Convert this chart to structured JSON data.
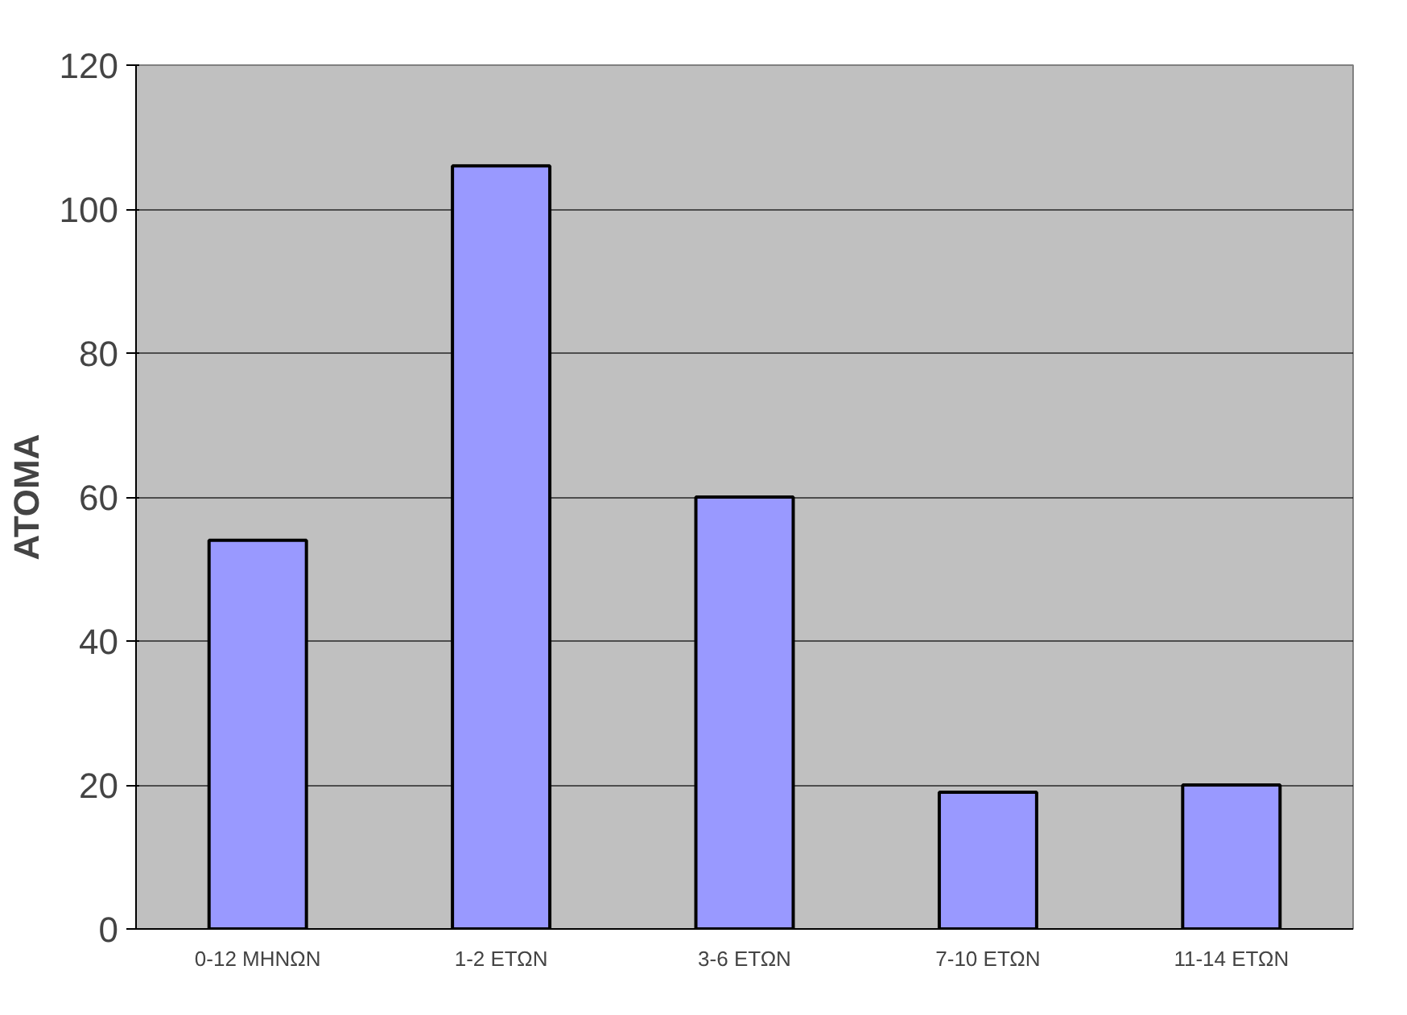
{
  "chart_data": {
    "type": "bar",
    "ylabel": "ΑΤΟΜΑ",
    "categories": [
      "0-12 ΜΗΝΩΝ",
      "1-2 ΕΤΩΝ",
      "3-6 ΕΤΩΝ",
      "7-10 ΕΤΩΝ",
      "11-14 ΕΤΩΝ"
    ],
    "values": [
      54,
      106,
      60,
      19,
      20
    ],
    "color": "#9999ff",
    "ylim": [
      0,
      120
    ],
    "yticks": [
      0,
      20,
      40,
      60,
      80,
      100,
      120
    ],
    "grid": "y"
  }
}
